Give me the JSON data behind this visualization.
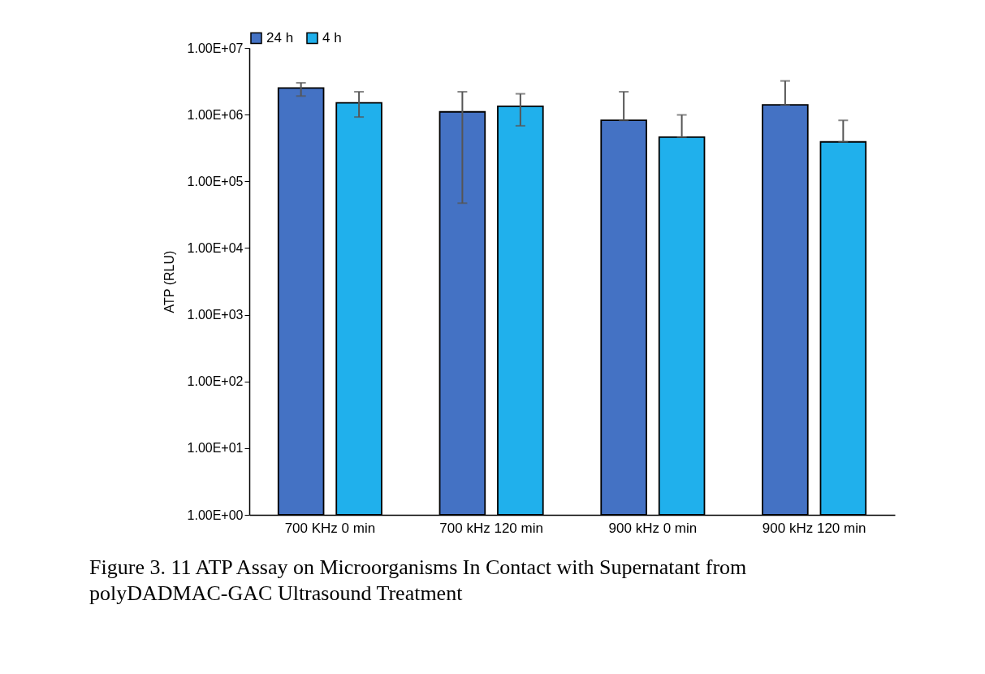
{
  "chart_data": {
    "type": "bar",
    "title": "Figure 3. 11 ATP Assay on Microorganisms In Contact with Supernatant from polyDADMAC-GAC Ultrasound Treatment",
    "ylabel": "ATP (RLU)",
    "categories": [
      "700 KHz 0 min",
      "700 kHz 120 min",
      "900 kHz 0 min",
      "900 kHz 120 min"
    ],
    "series": [
      {
        "name": "24 h",
        "color": "#4472c4",
        "values": [
          2500000,
          1100000,
          820000,
          1400000
        ],
        "errors": [
          [
            1900000,
            3000000
          ],
          [
            47000,
            2200000
          ],
          [
            820000,
            2200000
          ],
          [
            1400000,
            3200000
          ]
        ]
      },
      {
        "name": "4 h",
        "color": "#20b0ec",
        "values": [
          1500000,
          1330000,
          460000,
          390000
        ],
        "errors": [
          [
            920000,
            2200000
          ],
          [
            680000,
            2050000
          ],
          [
            460000,
            990000
          ],
          [
            390000,
            820000
          ]
        ]
      }
    ],
    "log": true,
    "ylim": [
      1,
      10000000
    ],
    "yticks": [
      {
        "value": 1,
        "label": "1.00E+00"
      },
      {
        "value": 10,
        "label": "1.00E+01"
      },
      {
        "value": 100,
        "label": "1.00E+02"
      },
      {
        "value": 1000,
        "label": "1.00E+03"
      },
      {
        "value": 10000,
        "label": "1.00E+04"
      },
      {
        "value": 100000,
        "label": "1.00E+05"
      },
      {
        "value": 1000000,
        "label": "1.00E+06"
      },
      {
        "value": 10000000,
        "label": "1.00E+07"
      }
    ],
    "grid": false,
    "legend": "top"
  }
}
